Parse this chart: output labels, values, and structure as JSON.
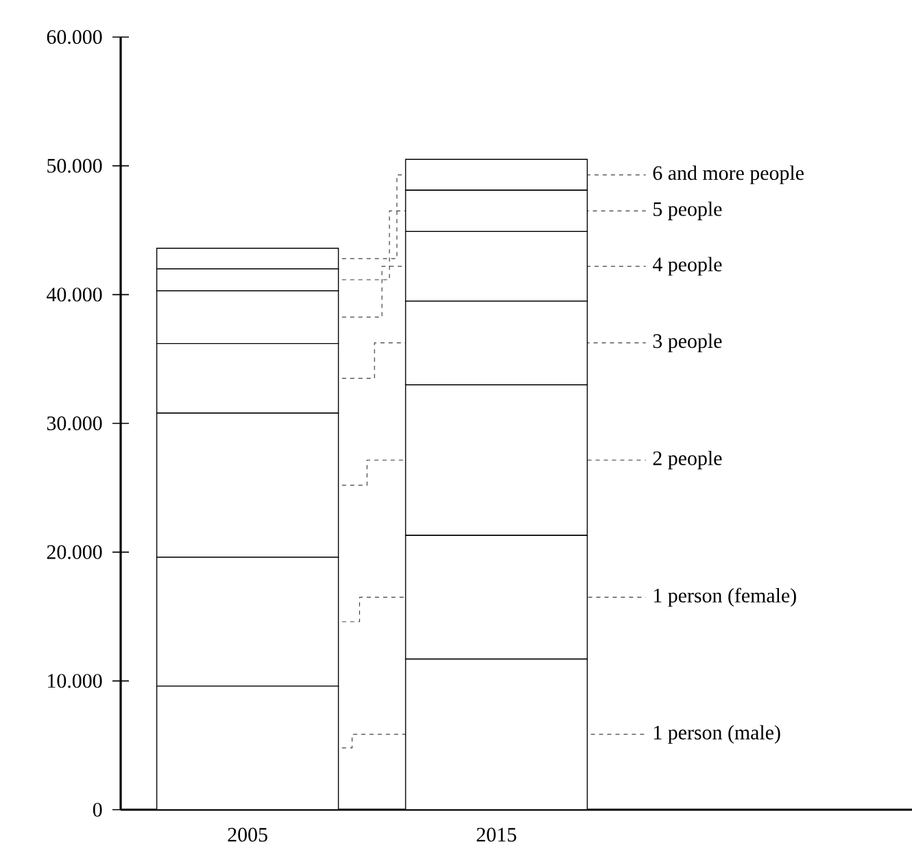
{
  "chart_data": {
    "type": "bar",
    "stacked": true,
    "categories": [
      "2005",
      "2015"
    ],
    "series": [
      {
        "name": "1 person (male)",
        "color": "#ffffff",
        "values": [
          9600,
          11700
        ]
      },
      {
        "name": "1 person (female)",
        "color": "#ffffff",
        "values": [
          10000,
          9600
        ]
      },
      {
        "name": "2 people",
        "color": "#ffffff",
        "values": [
          11200,
          11700
        ]
      },
      {
        "name": "3 people",
        "color": "#ffffff",
        "values": [
          5400,
          6500
        ]
      },
      {
        "name": "4 people",
        "color": "#ffffff",
        "values": [
          4100,
          5400
        ]
      },
      {
        "name": "5 people",
        "color": "#ffffff",
        "values": [
          1700,
          3200
        ]
      },
      {
        "name": "6 and more people",
        "color": "#ffffff",
        "values": [
          1600,
          2400
        ]
      }
    ],
    "ylim": [
      0,
      60000
    ],
    "yticks": [
      0,
      {
        "value": 10000,
        "label": "10.000"
      },
      {
        "value": 20000,
        "label": "20.000"
      },
      {
        "value": 30000,
        "label": "30.000"
      },
      {
        "value": 40000,
        "label": "40.000"
      },
      {
        "value": 50000,
        "label": "50.000"
      },
      {
        "value": 60000,
        "label": "60.000"
      }
    ]
  }
}
